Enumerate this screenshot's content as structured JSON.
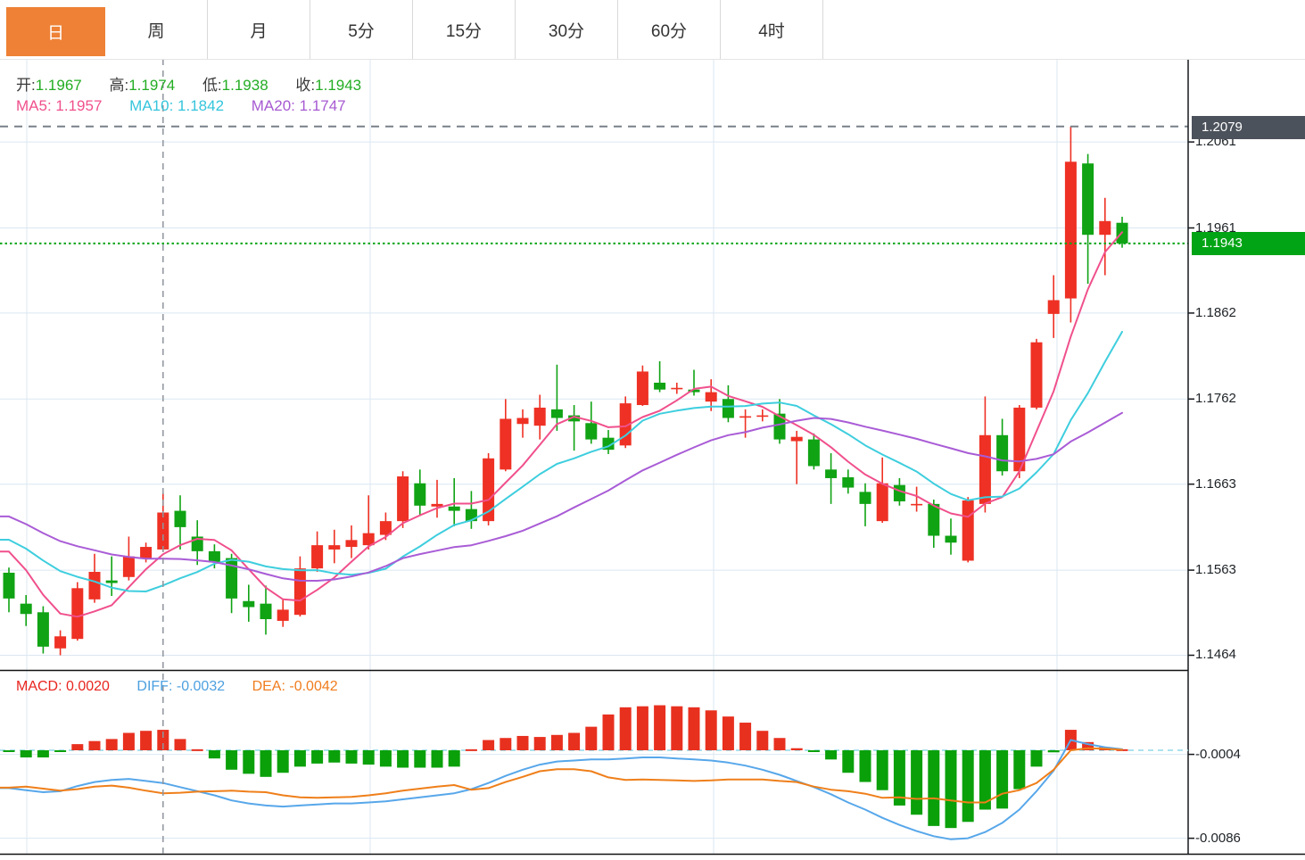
{
  "tabs": [
    {
      "label": "日",
      "active": true
    },
    {
      "label": "周",
      "active": false
    },
    {
      "label": "月",
      "active": false
    },
    {
      "label": "5分",
      "active": false
    },
    {
      "label": "15分",
      "active": false
    },
    {
      "label": "30分",
      "active": false
    },
    {
      "label": "60分",
      "active": false
    },
    {
      "label": "4时",
      "active": false
    }
  ],
  "info": {
    "open_label": "开:",
    "open": "1.1967",
    "high_label": "高:",
    "high": "1.1974",
    "low_label": "低:",
    "low": "1.1938",
    "close_label": "收:",
    "close": "1.1943"
  },
  "ma_info": {
    "ma5_label": "MA5:",
    "ma5": "1.1957",
    "ma10_label": "MA10:",
    "ma10": "1.1842",
    "ma20_label": "MA20:",
    "ma20": "1.1747"
  },
  "macd_info": {
    "macd_label": "MACD:",
    "macd": "0.0020",
    "diff_label": "DIFF:",
    "diff": "-0.0032",
    "dea_label": "DEA:",
    "dea": "-0.0042"
  },
  "axis": {
    "high_marker": "1.2079",
    "last_marker": "1.1943",
    "main_ticks": [
      {
        "label": "1.2061",
        "price": 1.2061
      },
      {
        "label": "1.1961",
        "price": 1.1961
      },
      {
        "label": "1.1862",
        "price": 1.1862
      },
      {
        "label": "1.1762",
        "price": 1.1762
      },
      {
        "label": "1.1663",
        "price": 1.1663
      },
      {
        "label": "1.1563",
        "price": 1.1563
      },
      {
        "label": "1.1464",
        "price": 1.1464
      }
    ],
    "macd_ticks": [
      {
        "label": "-0.0004",
        "value": -0.0004
      },
      {
        "label": "-0.0086",
        "value": -0.0086
      }
    ]
  },
  "colors": {
    "up": "#ee3124",
    "down": "#10a314",
    "ma5": "#f0508c",
    "ma10": "#3ecede",
    "ma20": "#a95cd6",
    "diff_line": "#57a7ea",
    "dea_line": "#ef7f1a",
    "hist_up": "#e8301f",
    "hist_down": "#0aa00a",
    "grid": "#dbe7f2",
    "axis": "#16181d",
    "high_line": "#788088",
    "last_line": "#00a414",
    "crosshair": "#8f959d",
    "zero_line": "#8fd9e8",
    "active_tab": "#ee8136",
    "marker_high_bg": "#4c525c",
    "marker_last_bg": "#00a414"
  },
  "chart_data": {
    "type": "candlestick+macd",
    "title": "",
    "x_mode": "index",
    "price_axis_range": [
      1.143,
      1.212
    ],
    "macd_axis_range": [
      -0.0101,
      0.0055
    ],
    "legend": [
      "MA5",
      "MA10",
      "MA20",
      "MACD",
      "DIFF",
      "DEA"
    ],
    "grid": true,
    "high_line_price": 1.2079,
    "last_price_line": 1.1943,
    "crosshair_index": 9,
    "candles_ohlc": [
      [
        1.156,
        1.1566,
        1.1514,
        1.153
      ],
      [
        1.1524,
        1.1534,
        1.1498,
        1.1512
      ],
      [
        1.1514,
        1.1521,
        1.1466,
        1.1474
      ],
      [
        1.1472,
        1.1493,
        1.1464,
        1.1486
      ],
      [
        1.1483,
        1.1549,
        1.1481,
        1.1542
      ],
      [
        1.1529,
        1.1582,
        1.1525,
        1.1561
      ],
      [
        1.1551,
        1.1579,
        1.1533,
        1.1548
      ],
      [
        1.1555,
        1.1602,
        1.1551,
        1.1579
      ],
      [
        1.1577,
        1.1595,
        1.1572,
        1.159
      ],
      [
        1.1587,
        1.1653,
        1.1585,
        1.163
      ],
      [
        1.1632,
        1.165,
        1.1587,
        1.1613
      ],
      [
        1.1602,
        1.1621,
        1.1569,
        1.1585
      ],
      [
        1.1585,
        1.1593,
        1.1565,
        1.1572
      ],
      [
        1.1577,
        1.1582,
        1.1513,
        1.153
      ],
      [
        1.1527,
        1.1546,
        1.1503,
        1.152
      ],
      [
        1.1524,
        1.1545,
        1.1488,
        1.1506
      ],
      [
        1.1504,
        1.153,
        1.1497,
        1.1517
      ],
      [
        1.1511,
        1.1579,
        1.1509,
        1.1565
      ],
      [
        1.1565,
        1.1608,
        1.1561,
        1.1592
      ],
      [
        1.1587,
        1.161,
        1.1571,
        1.1592
      ],
      [
        1.159,
        1.1615,
        1.1577,
        1.1598
      ],
      [
        1.1592,
        1.165,
        1.1587,
        1.1606
      ],
      [
        1.1604,
        1.163,
        1.1598,
        1.162
      ],
      [
        1.162,
        1.1678,
        1.1612,
        1.1672
      ],
      [
        1.1664,
        1.168,
        1.1626,
        1.1638
      ],
      [
        1.1637,
        1.1668,
        1.1624,
        1.164
      ],
      [
        1.1637,
        1.167,
        1.1614,
        1.1632
      ],
      [
        1.1634,
        1.1655,
        1.1611,
        1.162
      ],
      [
        1.162,
        1.1699,
        1.1615,
        1.1693
      ],
      [
        1.168,
        1.1762,
        1.1678,
        1.1739
      ],
      [
        1.1733,
        1.175,
        1.1717,
        1.174
      ],
      [
        1.1731,
        1.1767,
        1.1715,
        1.1752
      ],
      [
        1.175,
        1.1802,
        1.1725,
        1.174
      ],
      [
        1.1743,
        1.1755,
        1.1702,
        1.1736
      ],
      [
        1.1734,
        1.1759,
        1.171,
        1.1715
      ],
      [
        1.1717,
        1.1726,
        1.1698,
        1.1703
      ],
      [
        1.1708,
        1.1765,
        1.1705,
        1.1757
      ],
      [
        1.1755,
        1.1801,
        1.1754,
        1.1794
      ],
      [
        1.1781,
        1.1806,
        1.177,
        1.1773
      ],
      [
        1.1775,
        1.1781,
        1.1768,
        1.1775
      ],
      [
        1.1773,
        1.1796,
        1.1766,
        1.177
      ],
      [
        1.1759,
        1.1785,
        1.1748,
        1.177
      ],
      [
        1.1762,
        1.1778,
        1.1735,
        1.174
      ],
      [
        1.1742,
        1.175,
        1.1717,
        1.1742
      ],
      [
        1.1742,
        1.175,
        1.1736,
        1.1743
      ],
      [
        1.1745,
        1.1762,
        1.171,
        1.1715
      ],
      [
        1.1713,
        1.1725,
        1.1663,
        1.1718
      ],
      [
        1.1715,
        1.1722,
        1.168,
        1.1684
      ],
      [
        1.168,
        1.1699,
        1.164,
        1.167
      ],
      [
        1.1671,
        1.168,
        1.1652,
        1.1659
      ],
      [
        1.1654,
        1.1664,
        1.1614,
        1.164
      ],
      [
        1.162,
        1.1694,
        1.1618,
        1.1664
      ],
      [
        1.1662,
        1.167,
        1.1638,
        1.1643
      ],
      [
        1.1639,
        1.166,
        1.1631,
        1.164
      ],
      [
        1.164,
        1.1645,
        1.1589,
        1.1603
      ],
      [
        1.1603,
        1.1623,
        1.1581,
        1.1595
      ],
      [
        1.1574,
        1.1648,
        1.1572,
        1.1644
      ],
      [
        1.164,
        1.1765,
        1.163,
        1.172
      ],
      [
        1.172,
        1.1739,
        1.1673,
        1.1678
      ],
      [
        1.1678,
        1.1755,
        1.167,
        1.1752
      ],
      [
        1.1752,
        1.1832,
        1.175,
        1.1828
      ],
      [
        1.1861,
        1.1906,
        1.1833,
        1.1877
      ],
      [
        1.1879,
        1.2079,
        1.1851,
        1.2038
      ],
      [
        1.2036,
        1.2047,
        1.1896,
        1.1953
      ],
      [
        1.1953,
        1.1996,
        1.1906,
        1.1969
      ],
      [
        1.1967,
        1.1974,
        1.1938,
        1.1943
      ]
    ],
    "pre_closes": [
      1.169,
      1.1685,
      1.1672,
      1.166,
      1.1655,
      1.1645,
      1.1638,
      1.163,
      1.1628,
      1.1622,
      1.1616,
      1.1612,
      1.161,
      1.1608,
      1.1615,
      1.162,
      1.1618,
      1.1595,
      1.156
    ],
    "ma_periods": [
      5,
      10,
      20
    ],
    "macd_hist": [
      -0.0001,
      -0.0007,
      -0.0007,
      -0.0001,
      0.0006,
      0.0009,
      0.0011,
      0.0017,
      0.0019,
      0.002,
      0.0011,
      0.0001,
      -0.0008,
      -0.0019,
      -0.0023,
      -0.0026,
      -0.0022,
      -0.0016,
      -0.0013,
      -0.0012,
      -0.0013,
      -0.0014,
      -0.0016,
      -0.0017,
      -0.0017,
      -0.0017,
      -0.0016,
      0.0001,
      0.001,
      0.0012,
      0.0014,
      0.0013,
      0.0015,
      0.0017,
      0.0023,
      0.0035,
      0.0042,
      0.0043,
      0.0044,
      0.0043,
      0.0042,
      0.0039,
      0.0033,
      0.0027,
      0.0019,
      0.0012,
      0.0002,
      -0.0001,
      -0.0009,
      -0.0022,
      -0.0031,
      -0.0039,
      -0.0054,
      -0.0063,
      -0.0074,
      -0.0076,
      -0.007,
      -0.0058,
      -0.0057,
      -0.0038,
      -0.0016,
      -0.0002,
      0.002,
      0.0008,
      0.0003,
      0.0001
    ],
    "macd_diff": [
      -0.0037,
      -0.0039,
      -0.0041,
      -0.004,
      -0.0035,
      -0.0031,
      -0.0029,
      -0.0028,
      -0.003,
      -0.0032,
      -0.0036,
      -0.004,
      -0.0044,
      -0.0049,
      -0.0052,
      -0.0054,
      -0.0055,
      -0.0054,
      -0.0053,
      -0.0052,
      -0.0052,
      -0.0051,
      -0.005,
      -0.0048,
      -0.0046,
      -0.0044,
      -0.0042,
      -0.0038,
      -0.0032,
      -0.0025,
      -0.0019,
      -0.0014,
      -0.0011,
      -0.001,
      -0.0009,
      -0.0009,
      -0.0008,
      -0.0007,
      -0.0007,
      -0.0008,
      -0.0009,
      -0.001,
      -0.0012,
      -0.0015,
      -0.0019,
      -0.0024,
      -0.003,
      -0.0036,
      -0.0043,
      -0.0051,
      -0.0058,
      -0.0066,
      -0.0073,
      -0.0079,
      -0.0084,
      -0.0087,
      -0.0086,
      -0.008,
      -0.0071,
      -0.0058,
      -0.004,
      -0.002,
      0.001,
      0.0006,
      0.0003,
      0.0001
    ]
  }
}
